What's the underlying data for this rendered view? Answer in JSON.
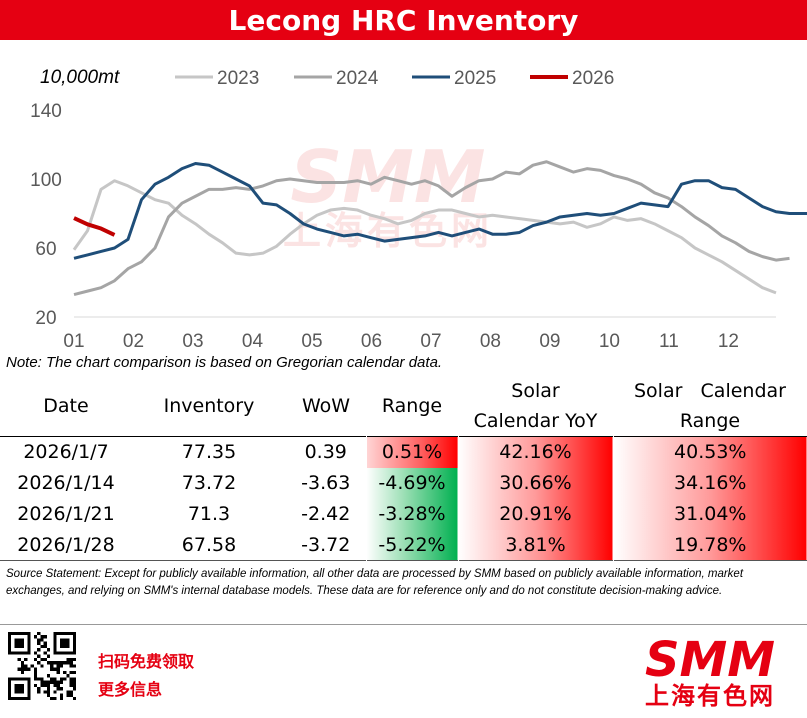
{
  "header": {
    "title": "Lecong HRC Inventory"
  },
  "chart_data": {
    "type": "line",
    "title": "Lecong HRC Inventory",
    "ylabel": "10,000mt",
    "xlabel": "",
    "ylim": [
      20,
      140
    ],
    "yticks": [
      "140",
      "100",
      "60",
      "20"
    ],
    "ytick_values": [
      140,
      100,
      60,
      20
    ],
    "xticks": [
      "01",
      "02",
      "03",
      "04",
      "05",
      "06",
      "07",
      "08",
      "09",
      "10",
      "11",
      "12"
    ],
    "x_range_weeks": [
      0,
      52
    ],
    "grid": false,
    "legend_position": "top",
    "series": [
      {
        "name": "2023",
        "color": "#c6c6c6",
        "values": [
          59,
          70,
          94,
          99,
          96,
          92,
          88,
          86,
          79,
          74,
          68,
          63,
          57,
          56,
          57,
          61,
          68,
          74,
          79,
          82,
          83,
          82,
          79,
          77,
          74,
          76,
          80,
          82,
          82,
          80,
          78,
          79,
          78,
          77,
          76,
          75,
          74,
          75,
          72,
          74,
          78,
          76,
          77,
          74,
          70,
          66,
          60,
          56,
          52,
          47,
          42,
          37,
          34
        ]
      },
      {
        "name": "2024",
        "color": "#a5a5a5",
        "values": [
          33,
          35,
          37,
          41,
          48,
          52,
          60,
          78,
          86,
          90,
          94,
          94,
          95,
          94,
          96,
          99,
          100,
          99,
          98,
          98,
          98,
          99,
          97,
          101,
          99,
          97,
          99,
          96,
          90,
          95,
          99,
          100,
          104,
          103,
          108,
          110,
          107,
          104,
          106,
          105,
          102,
          100,
          97,
          92,
          89,
          84,
          78,
          73,
          67,
          63,
          58,
          55,
          53,
          54
        ]
      },
      {
        "name": "2025",
        "color": "#1f4e79",
        "values": [
          54,
          56,
          58,
          60,
          65,
          88,
          97,
          101,
          106,
          109,
          108,
          104,
          100,
          96,
          86,
          85,
          80,
          74,
          71,
          69,
          67,
          68,
          66,
          64,
          65,
          66,
          67,
          69,
          67,
          69,
          71,
          68,
          68,
          69,
          73,
          75,
          78,
          79,
          80,
          79,
          80,
          83,
          86,
          85,
          84,
          97,
          99,
          99,
          95,
          94,
          89,
          84,
          81,
          80,
          80,
          80,
          78
        ]
      },
      {
        "name": "2026",
        "color": "#c00000",
        "values": [
          77.35,
          73.72,
          71.3,
          67.58
        ]
      }
    ]
  },
  "note": "Note: The chart comparison is based on Gregorian calendar data.",
  "table": {
    "headers": [
      "Date",
      "Inventory",
      "WoW",
      "Range",
      "Solar\nCalendar YoY",
      "Solar   Calendar\nRange"
    ],
    "rows": [
      {
        "date": "2026/1/7",
        "inventory": "77.35",
        "wow": "0.39",
        "range": "0.51%",
        "range_color": "red",
        "yoy": "42.16%",
        "cal_range": "40.53%"
      },
      {
        "date": "2026/1/14",
        "inventory": "73.72",
        "wow": "-3.63",
        "range": "-4.69%",
        "range_color": "green",
        "yoy": "30.66%",
        "cal_range": "34.16%"
      },
      {
        "date": "2026/1/21",
        "inventory": "71.3",
        "wow": "-2.42",
        "range": "-3.28%",
        "range_color": "green",
        "yoy": "20.91%",
        "cal_range": "31.04%"
      },
      {
        "date": "2026/1/28",
        "inventory": "67.58",
        "wow": "-3.72",
        "range": "-5.22%",
        "range_color": "green",
        "yoy": "3.81%",
        "cal_range": "19.78%"
      }
    ]
  },
  "source": "Source Statement: Except for publicly available information, all other data are processed by SMM based on publicly available information, market exchanges, and relying on SMM's internal database models. These data are for reference only and do not constitute decision-making advice.",
  "footer": {
    "cta_line1": "扫码免费领取",
    "cta_line2": "更多信息",
    "logo_text": "SMM",
    "logo_sub": "上海有色网",
    "qr_icon": "qr-code-icon",
    "watermark_text": "SMM",
    "watermark_sub": "上海有色网"
  },
  "colors": {
    "brand_red": "#e50012",
    "positive_red": "#ff1a1a",
    "negative_green": "#00b050"
  }
}
